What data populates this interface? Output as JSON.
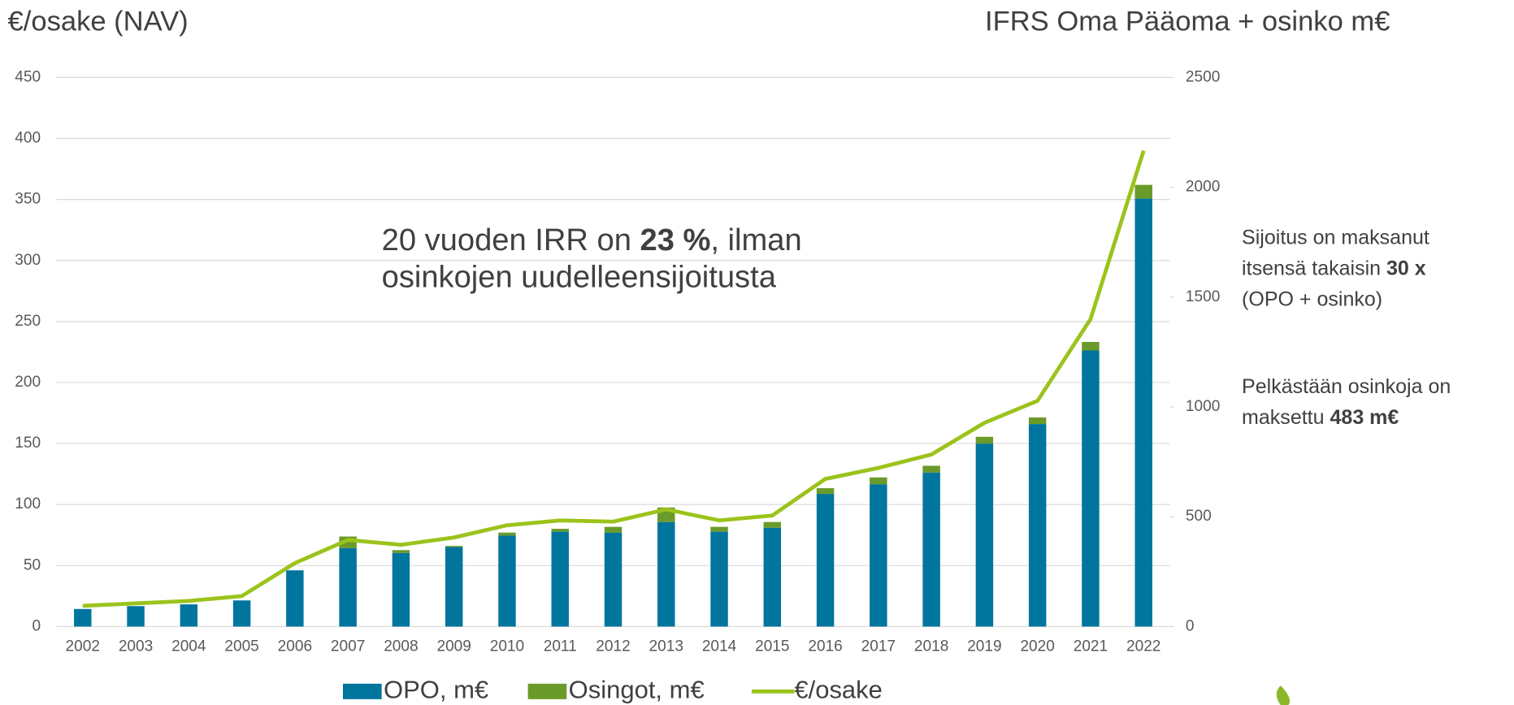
{
  "chart_data": {
    "type": "bar_line",
    "y_title": "€/osake (NAV)",
    "y2_title": "IFRS Oma Pääoma + osinko m€",
    "categories": [
      "2002",
      "2003",
      "2004",
      "2005",
      "2006",
      "2007",
      "2008",
      "2009",
      "2010",
      "2011",
      "2012",
      "2013",
      "2014",
      "2015",
      "2016",
      "2017",
      "2018",
      "2019",
      "2020",
      "2021",
      "2022"
    ],
    "series": [
      {
        "name": "OPO, m€",
        "type": "bar",
        "axis": "y2",
        "color": "#00759e",
        "values": [
          80,
          93,
          101,
          119,
          256,
          357,
          335,
          362,
          414,
          432,
          428,
          476,
          432,
          450,
          604,
          648,
          701,
          833,
          922,
          1257,
          1949
        ]
      },
      {
        "name": "Osingot, m€",
        "type": "bar",
        "axis": "y2",
        "color": "#6a9a2a",
        "values": [
          0,
          0,
          0,
          0,
          0,
          53,
          13,
          5,
          14,
          13,
          26,
          66,
          22,
          26,
          26,
          31,
          31,
          31,
          30,
          39,
          62
        ]
      },
      {
        "name": "€/osake",
        "type": "line",
        "color": "#9bc31b",
        "values": [
          17,
          19,
          21,
          25,
          52,
          71,
          67,
          73,
          83,
          87,
          86,
          96,
          87,
          91,
          121,
          130,
          141,
          167,
          185,
          252,
          390
        ]
      }
    ],
    "stacked": true,
    "ylim": [
      0,
      450
    ],
    "yticks": [
      0,
      50,
      100,
      150,
      200,
      250,
      300,
      350,
      400,
      450
    ],
    "y2lim": [
      0,
      2500
    ],
    "y2ticks": [
      0,
      500,
      1000,
      1500,
      2000,
      2500
    ],
    "grid": true,
    "legend": "bottom",
    "annotations": [
      {
        "lines": [
          [
            {
              "text": "20 vuoden IRR on "
            },
            {
              "text": "23 %",
              "bold": true
            },
            {
              "text": ", ilman"
            }
          ],
          [
            {
              "text": "osinkojen uudelleensijoitusta"
            }
          ]
        ]
      },
      {
        "lines": [
          [
            {
              "text": "Sijoitus on maksanut"
            }
          ],
          [
            {
              "text": "itsensä takaisin "
            },
            {
              "text": "30 x",
              "bold": true
            }
          ],
          [
            {
              "text": "(OPO + osinko)"
            }
          ]
        ]
      },
      {
        "lines": [
          [
            {
              "text": "Pelkästään osinkoja on"
            }
          ],
          [
            {
              "text": "maksettu "
            },
            {
              "text": "483 m€",
              "bold": true
            }
          ]
        ]
      }
    ]
  }
}
